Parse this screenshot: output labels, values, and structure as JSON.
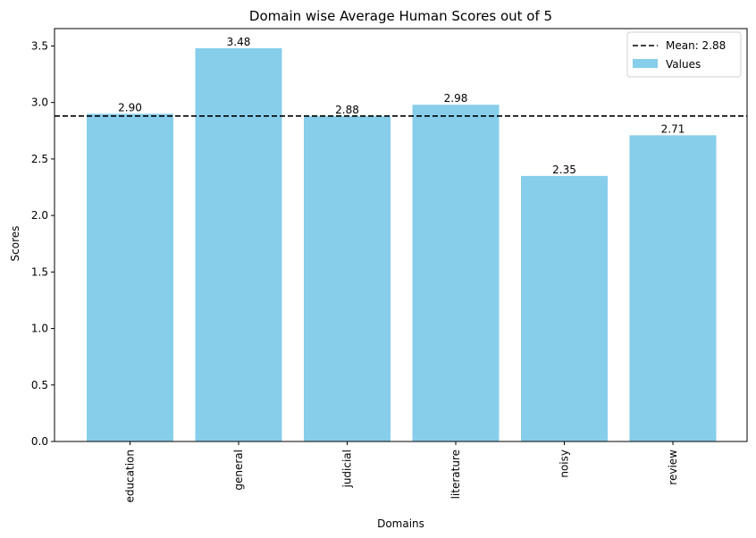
{
  "chart_data": {
    "type": "bar",
    "title": "Domain wise Average Human Scores out of 5",
    "xlabel": "Domains",
    "ylabel": "Scores",
    "categories": [
      "education",
      "general",
      "judicial",
      "literature",
      "noisy",
      "review"
    ],
    "series": [
      {
        "name": "Values",
        "values": [
          2.9,
          3.48,
          2.88,
          2.98,
          2.35,
          2.71
        ],
        "color": "#87CEEB"
      }
    ],
    "data_labels": [
      "2.90",
      "3.48",
      "2.88",
      "2.98",
      "2.35",
      "2.71"
    ],
    "mean_line": {
      "value": 2.88,
      "label": "Mean: 2.88",
      "color": "#000000",
      "style": "dashed"
    },
    "ylim": [
      0,
      3.654
    ],
    "yticks": [
      0.0,
      0.5,
      1.0,
      1.5,
      2.0,
      2.5,
      3.0,
      3.5
    ],
    "ytick_labels": [
      "0.0",
      "0.5",
      "1.0",
      "1.5",
      "2.0",
      "2.5",
      "3.0",
      "3.5"
    ],
    "grid": false,
    "legend": {
      "position": "top-right",
      "entries": [
        "Mean: 2.88",
        "Values"
      ]
    }
  }
}
